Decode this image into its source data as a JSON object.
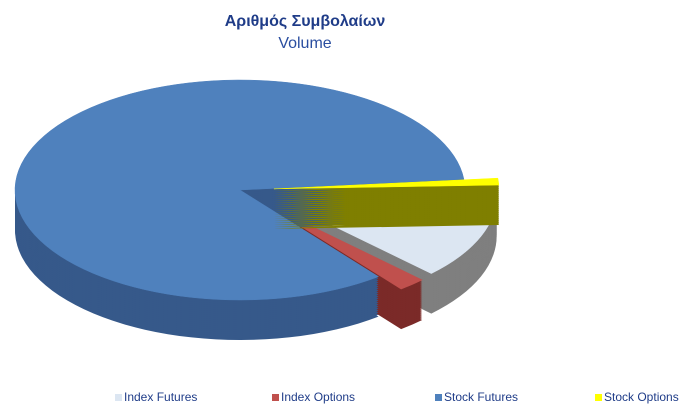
{
  "chart_data": {
    "type": "pie3d",
    "title": "Αριθμός Συμβολαίων",
    "subtitle": "Volume",
    "categories": [
      "Index Futures",
      "Index Options",
      "Stock Futures",
      "Stock Options"
    ],
    "values": [
      13,
      2,
      84,
      1
    ],
    "colors": [
      "#dce6f2",
      "#c0504d",
      "#4f81bd",
      "#ffff00"
    ],
    "side_colors": [
      "#7f7f7f",
      "#7b2a28",
      "#36598a",
      "#7f7f00"
    ],
    "exploded": [
      true,
      true,
      false,
      true
    ],
    "legend": "bottom"
  }
}
